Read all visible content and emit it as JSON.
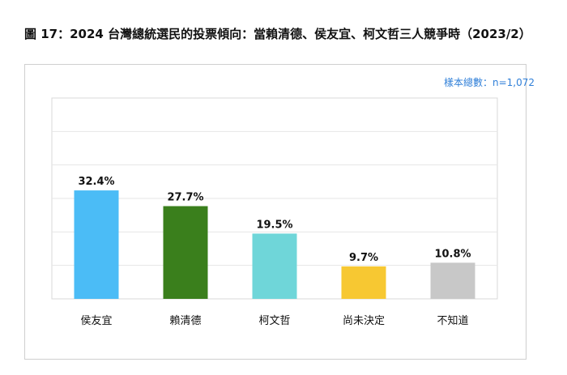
{
  "chart_data": {
    "type": "bar",
    "title": "圖 17：2024 台灣總統選民的投票傾向：當賴清德、侯友宜、柯文哲三人競爭時（2023/2）",
    "annotation": "樣本總數：n=1,072",
    "categories": [
      "侯友宜",
      "賴清德",
      "柯文哲",
      "尚未決定",
      "不知道"
    ],
    "values": [
      32.4,
      27.7,
      19.5,
      9.7,
      10.8
    ],
    "data_labels": [
      "32.4%",
      "27.7%",
      "19.5%",
      "9.7%",
      "10.8%"
    ],
    "colors": [
      "#4bbcf6",
      "#3a7f1c",
      "#6fd6d9",
      "#f7c832",
      "#c8c8c8"
    ],
    "ylim": [
      0,
      60
    ],
    "grid": true,
    "legend": "none"
  }
}
